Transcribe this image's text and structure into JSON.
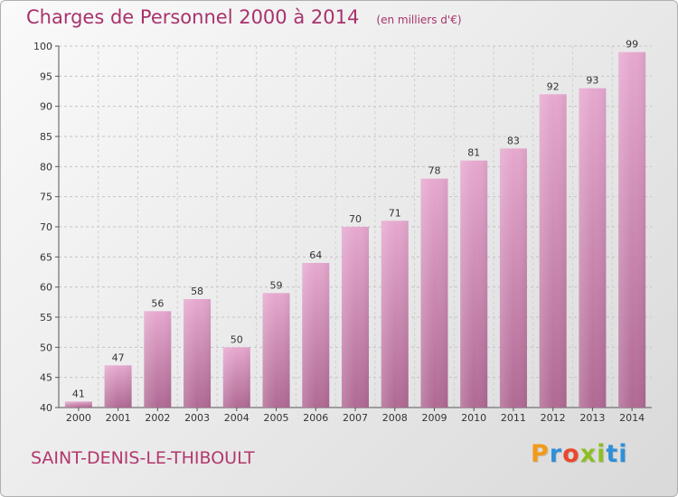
{
  "header": {
    "title": "Charges de Personnel 2000 à 2014",
    "subtitle": "(en milliers d'€)"
  },
  "commune": "SAINT-DENIS-LE-THIBOULT",
  "logo": {
    "letters": [
      "P",
      "r",
      "o",
      "x",
      "i",
      "t",
      "i"
    ],
    "colors": [
      "#f29a1a",
      "#2f8fd8",
      "#e8492e",
      "#8cbf26",
      "#8cbf26",
      "#2f8fd8",
      "#2f8fd8"
    ]
  },
  "colors": {
    "bar_top": "#e6a8cf",
    "bar_bottom": "#b06a94",
    "text_accent": "#a8326d"
  },
  "chart_data": {
    "type": "bar",
    "title": "Charges de Personnel 2000 à 2014",
    "subtitle": "(en milliers d'€)",
    "xlabel": "",
    "ylabel": "",
    "categories": [
      "2000",
      "2001",
      "2002",
      "2003",
      "2004",
      "2005",
      "2006",
      "2007",
      "2008",
      "2009",
      "2010",
      "2011",
      "2012",
      "2013",
      "2014"
    ],
    "values": [
      41,
      47,
      56,
      58,
      50,
      59,
      64,
      70,
      71,
      78,
      81,
      83,
      92,
      93,
      99
    ],
    "ylim": [
      40,
      100
    ],
    "yticks": [
      40,
      45,
      50,
      55,
      60,
      65,
      70,
      75,
      80,
      85,
      90,
      95,
      100
    ],
    "grid": true,
    "legend": "none"
  }
}
